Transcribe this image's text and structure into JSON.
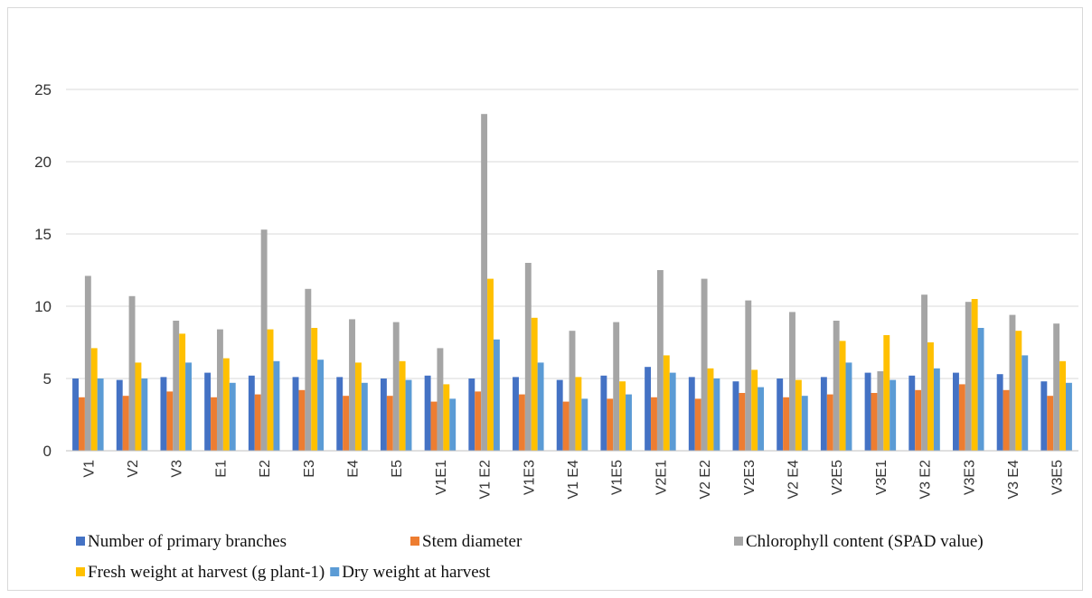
{
  "chart_data": {
    "type": "bar",
    "categories": [
      "V1",
      "V2",
      "V3",
      "E1",
      "E2",
      "E3",
      "E4",
      "E5",
      "V1E1",
      "V1 E2",
      "V1E3",
      "V1 E4",
      "V1E5",
      "V2E1",
      "V2 E2",
      "V2E3",
      "V2 E4",
      "V2E5",
      "V3E1",
      "V3 E2",
      "V3E3",
      "V3 E4",
      "V3E5"
    ],
    "ylim": [
      0,
      25
    ],
    "yticks": [
      0,
      5,
      10,
      15,
      20,
      25
    ],
    "grid": true,
    "legend_position": "bottom",
    "series": [
      {
        "name": "Number of primary branches",
        "color": "#4472c4",
        "values": [
          5.0,
          4.9,
          5.1,
          5.4,
          5.2,
          5.1,
          5.1,
          5.0,
          5.2,
          5.0,
          5.1,
          4.9,
          5.2,
          5.8,
          5.1,
          4.8,
          5.0,
          5.1,
          5.4,
          5.2,
          5.4,
          5.3,
          4.8
        ]
      },
      {
        "name": "Stem diameter",
        "color": "#ed7d31",
        "values": [
          3.7,
          3.8,
          4.1,
          3.7,
          3.9,
          4.2,
          3.8,
          3.8,
          3.4,
          4.1,
          3.9,
          3.4,
          3.6,
          3.7,
          3.6,
          4.0,
          3.7,
          3.9,
          4.0,
          4.2,
          4.6,
          4.2,
          3.8
        ]
      },
      {
        "name": "Chlorophyll content (SPAD value)",
        "color": "#a5a5a5",
        "values": [
          12.1,
          10.7,
          9.0,
          8.4,
          15.3,
          11.2,
          9.1,
          8.9,
          7.1,
          23.3,
          13.0,
          8.3,
          8.9,
          12.5,
          11.9,
          10.4,
          9.6,
          9.0,
          5.5,
          10.8,
          10.3,
          9.4,
          8.8
        ]
      },
      {
        "name": "Fresh weight at harvest (g plant-1)",
        "color": "#ffc000",
        "values": [
          7.1,
          6.1,
          8.1,
          6.4,
          8.4,
          8.5,
          6.1,
          6.2,
          4.6,
          11.9,
          9.2,
          5.1,
          4.8,
          6.6,
          5.7,
          5.6,
          4.9,
          7.6,
          8.0,
          7.5,
          10.5,
          8.3,
          6.2
        ]
      },
      {
        "name": "Dry weight at harvest",
        "color": "#5b9bd5",
        "values": [
          5.0,
          5.0,
          6.1,
          4.7,
          6.2,
          6.3,
          4.7,
          4.9,
          3.6,
          7.7,
          6.1,
          3.6,
          3.9,
          5.4,
          5.0,
          4.4,
          3.8,
          6.1,
          4.9,
          5.7,
          8.5,
          6.6,
          4.7
        ]
      }
    ]
  }
}
